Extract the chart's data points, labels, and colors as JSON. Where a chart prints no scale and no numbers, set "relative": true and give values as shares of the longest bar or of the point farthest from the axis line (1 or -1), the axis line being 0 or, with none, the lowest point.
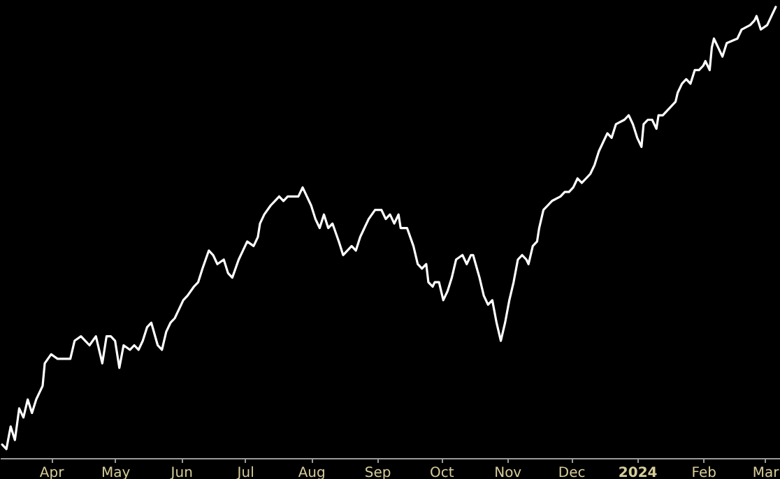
{
  "chart_data": {
    "type": "line",
    "relative": true,
    "xlim": [
      "2023-03-08",
      "2024-03-08"
    ],
    "xticks": [
      {
        "value": "2023-04-01",
        "label": "Apr"
      },
      {
        "value": "2023-05-01",
        "label": "May"
      },
      {
        "value": "2023-06-01",
        "label": "Jun"
      },
      {
        "value": "2023-07-01",
        "label": "Jul"
      },
      {
        "value": "2023-08-01",
        "label": "Aug"
      },
      {
        "value": "2023-09-01",
        "label": "Sep"
      },
      {
        "value": "2023-10-01",
        "label": "Oct"
      },
      {
        "value": "2023-11-01",
        "label": "Nov"
      },
      {
        "value": "2023-12-01",
        "label": "Dec"
      },
      {
        "value": "2024-01-01",
        "label": "2024"
      },
      {
        "value": "2024-02-01",
        "label": "Feb"
      },
      {
        "value": "2024-03-01",
        "label": "Mar"
      }
    ],
    "grid": false,
    "line_style": "solid",
    "marker": "none",
    "x": [
      "2023-03-09",
      "2023-03-11",
      "2023-03-13",
      "2023-03-15",
      "2023-03-17",
      "2023-03-19",
      "2023-03-21",
      "2023-03-23",
      "2023-03-25",
      "2023-03-28",
      "2023-03-29",
      "2023-04-01",
      "2023-04-04",
      "2023-04-06",
      "2023-04-08",
      "2023-04-10",
      "2023-04-12",
      "2023-04-15",
      "2023-04-17",
      "2023-04-19",
      "2023-04-22",
      "2023-04-25",
      "2023-04-27",
      "2023-04-29",
      "2023-05-01",
      "2023-05-03",
      "2023-05-05",
      "2023-05-08",
      "2023-05-10",
      "2023-05-12",
      "2023-05-14",
      "2023-05-16",
      "2023-05-18",
      "2023-05-21",
      "2023-05-23",
      "2023-05-25",
      "2023-05-27",
      "2023-05-29",
      "2023-05-31",
      "2023-06-02",
      "2023-06-04",
      "2023-06-07",
      "2023-06-09",
      "2023-06-11",
      "2023-06-14",
      "2023-06-16",
      "2023-06-18",
      "2023-06-21",
      "2023-06-23",
      "2023-06-25",
      "2023-06-28",
      "2023-06-30",
      "2023-07-02",
      "2023-07-05",
      "2023-07-07",
      "2023-07-08",
      "2023-07-10",
      "2023-07-13",
      "2023-07-15",
      "2023-07-17",
      "2023-07-19",
      "2023-07-21",
      "2023-07-24",
      "2023-07-26",
      "2023-07-28",
      "2023-07-30",
      "2023-08-01",
      "2023-08-03",
      "2023-08-05",
      "2023-08-07",
      "2023-08-09",
      "2023-08-11",
      "2023-08-14",
      "2023-08-16",
      "2023-08-18",
      "2023-08-20",
      "2023-08-22",
      "2023-08-24",
      "2023-08-26",
      "2023-08-28",
      "2023-08-31",
      "2023-09-03",
      "2023-09-05",
      "2023-09-07",
      "2023-09-09",
      "2023-09-11",
      "2023-09-12",
      "2023-09-15",
      "2023-09-18",
      "2023-09-20",
      "2023-09-22",
      "2023-09-24",
      "2023-09-25",
      "2023-09-27",
      "2023-09-28",
      "2023-09-30",
      "2023-10-02",
      "2023-10-03",
      "2023-10-04",
      "2023-10-06",
      "2023-10-08",
      "2023-10-11",
      "2023-10-13",
      "2023-10-15",
      "2023-10-16",
      "2023-10-19",
      "2023-10-21",
      "2023-10-23",
      "2023-10-25",
      "2023-10-27",
      "2023-10-29",
      "2023-10-31",
      "2023-11-02",
      "2023-11-04",
      "2023-11-06",
      "2023-11-08",
      "2023-11-10",
      "2023-11-11",
      "2023-11-13",
      "2023-11-15",
      "2023-11-16",
      "2023-11-18",
      "2023-11-20",
      "2023-11-22",
      "2023-11-26",
      "2023-11-28",
      "2023-11-30",
      "2023-12-02",
      "2023-12-04",
      "2023-12-06",
      "2023-12-08",
      "2023-12-10",
      "2023-12-12",
      "2023-12-14",
      "2023-12-16",
      "2023-12-18",
      "2023-12-20",
      "2023-12-22",
      "2023-12-26",
      "2023-12-28",
      "2023-12-30",
      "2024-01-01",
      "2024-01-03",
      "2024-01-04",
      "2024-01-06",
      "2024-01-08",
      "2024-01-10",
      "2024-01-11",
      "2024-01-13",
      "2024-01-15",
      "2024-01-17",
      "2024-01-19",
      "2024-01-20",
      "2024-01-22",
      "2024-01-24",
      "2024-01-26",
      "2024-01-28",
      "2024-01-30",
      "2024-02-01",
      "2024-02-02",
      "2024-02-04",
      "2024-02-05",
      "2024-02-06",
      "2024-02-08",
      "2024-02-10",
      "2024-02-12",
      "2024-02-17",
      "2024-02-19",
      "2024-02-23",
      "2024-02-25",
      "2024-02-26",
      "2024-02-28",
      "2024-03-02",
      "2024-03-04",
      "2024-03-06"
    ],
    "series": [
      {
        "color": "#ffffff",
        "values": [
          0.03,
          0.02,
          0.07,
          0.04,
          0.11,
          0.09,
          0.13,
          0.1,
          0.13,
          0.16,
          0.21,
          0.23,
          0.22,
          0.22,
          0.22,
          0.22,
          0.26,
          0.27,
          0.26,
          0.25,
          0.27,
          0.21,
          0.27,
          0.27,
          0.26,
          0.2,
          0.25,
          0.24,
          0.25,
          0.24,
          0.26,
          0.29,
          0.3,
          0.25,
          0.24,
          0.28,
          0.3,
          0.31,
          0.33,
          0.35,
          0.36,
          0.38,
          0.39,
          0.42,
          0.46,
          0.45,
          0.43,
          0.44,
          0.41,
          0.4,
          0.44,
          0.46,
          0.48,
          0.47,
          0.49,
          0.52,
          0.54,
          0.56,
          0.57,
          0.58,
          0.57,
          0.58,
          0.58,
          0.58,
          0.6,
          0.58,
          0.56,
          0.53,
          0.51,
          0.54,
          0.51,
          0.52,
          0.48,
          0.45,
          0.46,
          0.47,
          0.46,
          0.49,
          0.51,
          0.53,
          0.55,
          0.55,
          0.53,
          0.54,
          0.52,
          0.54,
          0.51,
          0.51,
          0.47,
          0.43,
          0.42,
          0.43,
          0.39,
          0.38,
          0.39,
          0.39,
          0.35,
          0.36,
          0.37,
          0.4,
          0.44,
          0.45,
          0.43,
          0.45,
          0.45,
          0.4,
          0.36,
          0.34,
          0.35,
          0.3,
          0.26,
          0.3,
          0.35,
          0.39,
          0.44,
          0.45,
          0.44,
          0.43,
          0.47,
          0.48,
          0.51,
          0.55,
          0.56,
          0.57,
          0.58,
          0.59,
          0.59,
          0.6,
          0.62,
          0.61,
          0.62,
          0.63,
          0.65,
          0.68,
          0.7,
          0.72,
          0.71,
          0.74,
          0.75,
          0.76,
          0.74,
          0.71,
          0.69,
          0.74,
          0.75,
          0.75,
          0.73,
          0.76,
          0.76,
          0.77,
          0.78,
          0.79,
          0.81,
          0.83,
          0.84,
          0.83,
          0.86,
          0.86,
          0.87,
          0.88,
          0.86,
          0.91,
          0.93,
          0.91,
          0.89,
          0.92,
          0.93,
          0.95,
          0.96,
          0.97,
          0.98,
          0.95,
          0.96,
          0.98,
          1
        ]
      }
    ]
  }
}
